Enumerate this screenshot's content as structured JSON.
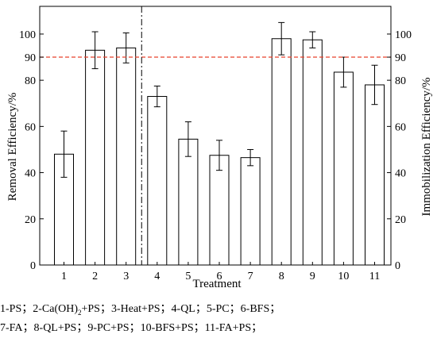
{
  "chart_data": {
    "type": "bar",
    "categories": [
      "1",
      "2",
      "3",
      "4",
      "5",
      "6",
      "7",
      "8",
      "9",
      "10",
      "11"
    ],
    "values": [
      48,
      93,
      94,
      73,
      54.5,
      47.5,
      46.5,
      98,
      97.5,
      83.5,
      78
    ],
    "errors": [
      10,
      8,
      6.5,
      4.5,
      7.5,
      6.5,
      3.5,
      7,
      3.5,
      6.5,
      8.5
    ],
    "xlabel": "Treatment",
    "ylabel": "Removal Efficiency/%",
    "y2label": "Immobilization Efficiency/%",
    "ylim": [
      0,
      112
    ],
    "yticks": [
      0,
      20,
      40,
      60,
      80,
      90,
      100
    ],
    "reference_line": {
      "y": 90,
      "style": "dashed",
      "color": "#e8412c"
    },
    "divider_after_category": "3",
    "bar_fill": "#ffffff",
    "bar_stroke": "#000000",
    "grid": false
  },
  "legend": {
    "line1": [
      {
        "text": "1-PS；"
      },
      {
        "text": "2-Ca(OH)",
        "sub": "2",
        "tail": "+PS；"
      },
      {
        "text": "3-Heat+PS；"
      },
      {
        "text": "4-QL；"
      },
      {
        "text": "5-PC；"
      },
      {
        "text": "6-BFS；"
      }
    ],
    "line2": [
      {
        "text": "7-FA；"
      },
      {
        "text": "8-QL+PS；"
      },
      {
        "text": "9-PC+PS；"
      },
      {
        "text": "10-BFS+PS；"
      },
      {
        "text": "11-FA+PS；"
      }
    ]
  }
}
